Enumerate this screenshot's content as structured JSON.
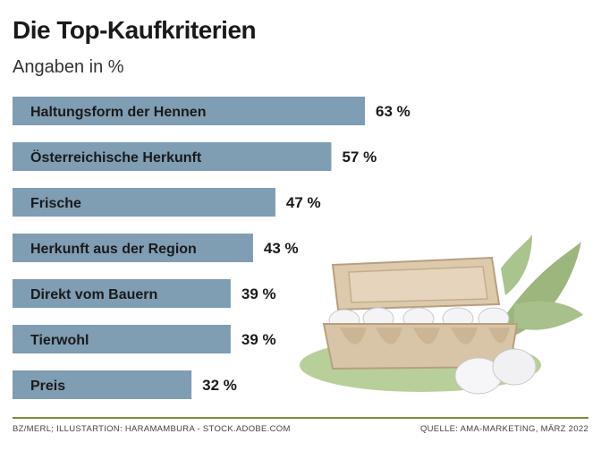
{
  "header": {
    "title": "Die Top-Kaufkriterien",
    "subtitle": "Angaben in %"
  },
  "footer": {
    "credit": "BZ/Merl; Illustartion: Haramambura - stock.adobe.com",
    "source": "Quelle: AMA-Marketing, März 2022"
  },
  "colors": {
    "bar": "#7f9db3",
    "rule": "#7a8f3a",
    "egg_box": "#d8c4a6",
    "leaf": "#9cb67e",
    "ground": "#b9cf9a"
  },
  "illustration": {
    "icon": "egg-carton-icon"
  },
  "chart_data": {
    "type": "bar",
    "orientation": "horizontal",
    "title": "Die Top-Kaufkriterien",
    "subtitle": "Angaben in %",
    "unit": "%",
    "categories": [
      "Haltungsform der Hennen",
      "Österreichische Herkunft",
      "Frische",
      "Herkunft aus der Region",
      "Direkt vom Bauern",
      "Tierwohl",
      "Preis"
    ],
    "values": [
      63,
      57,
      47,
      43,
      39,
      39,
      32
    ],
    "value_labels": [
      "63 %",
      "57 %",
      "47 %",
      "43 %",
      "39 %",
      "39 %",
      "32 %"
    ],
    "xlim": [
      0,
      63
    ],
    "grid": false,
    "legend": "none"
  }
}
